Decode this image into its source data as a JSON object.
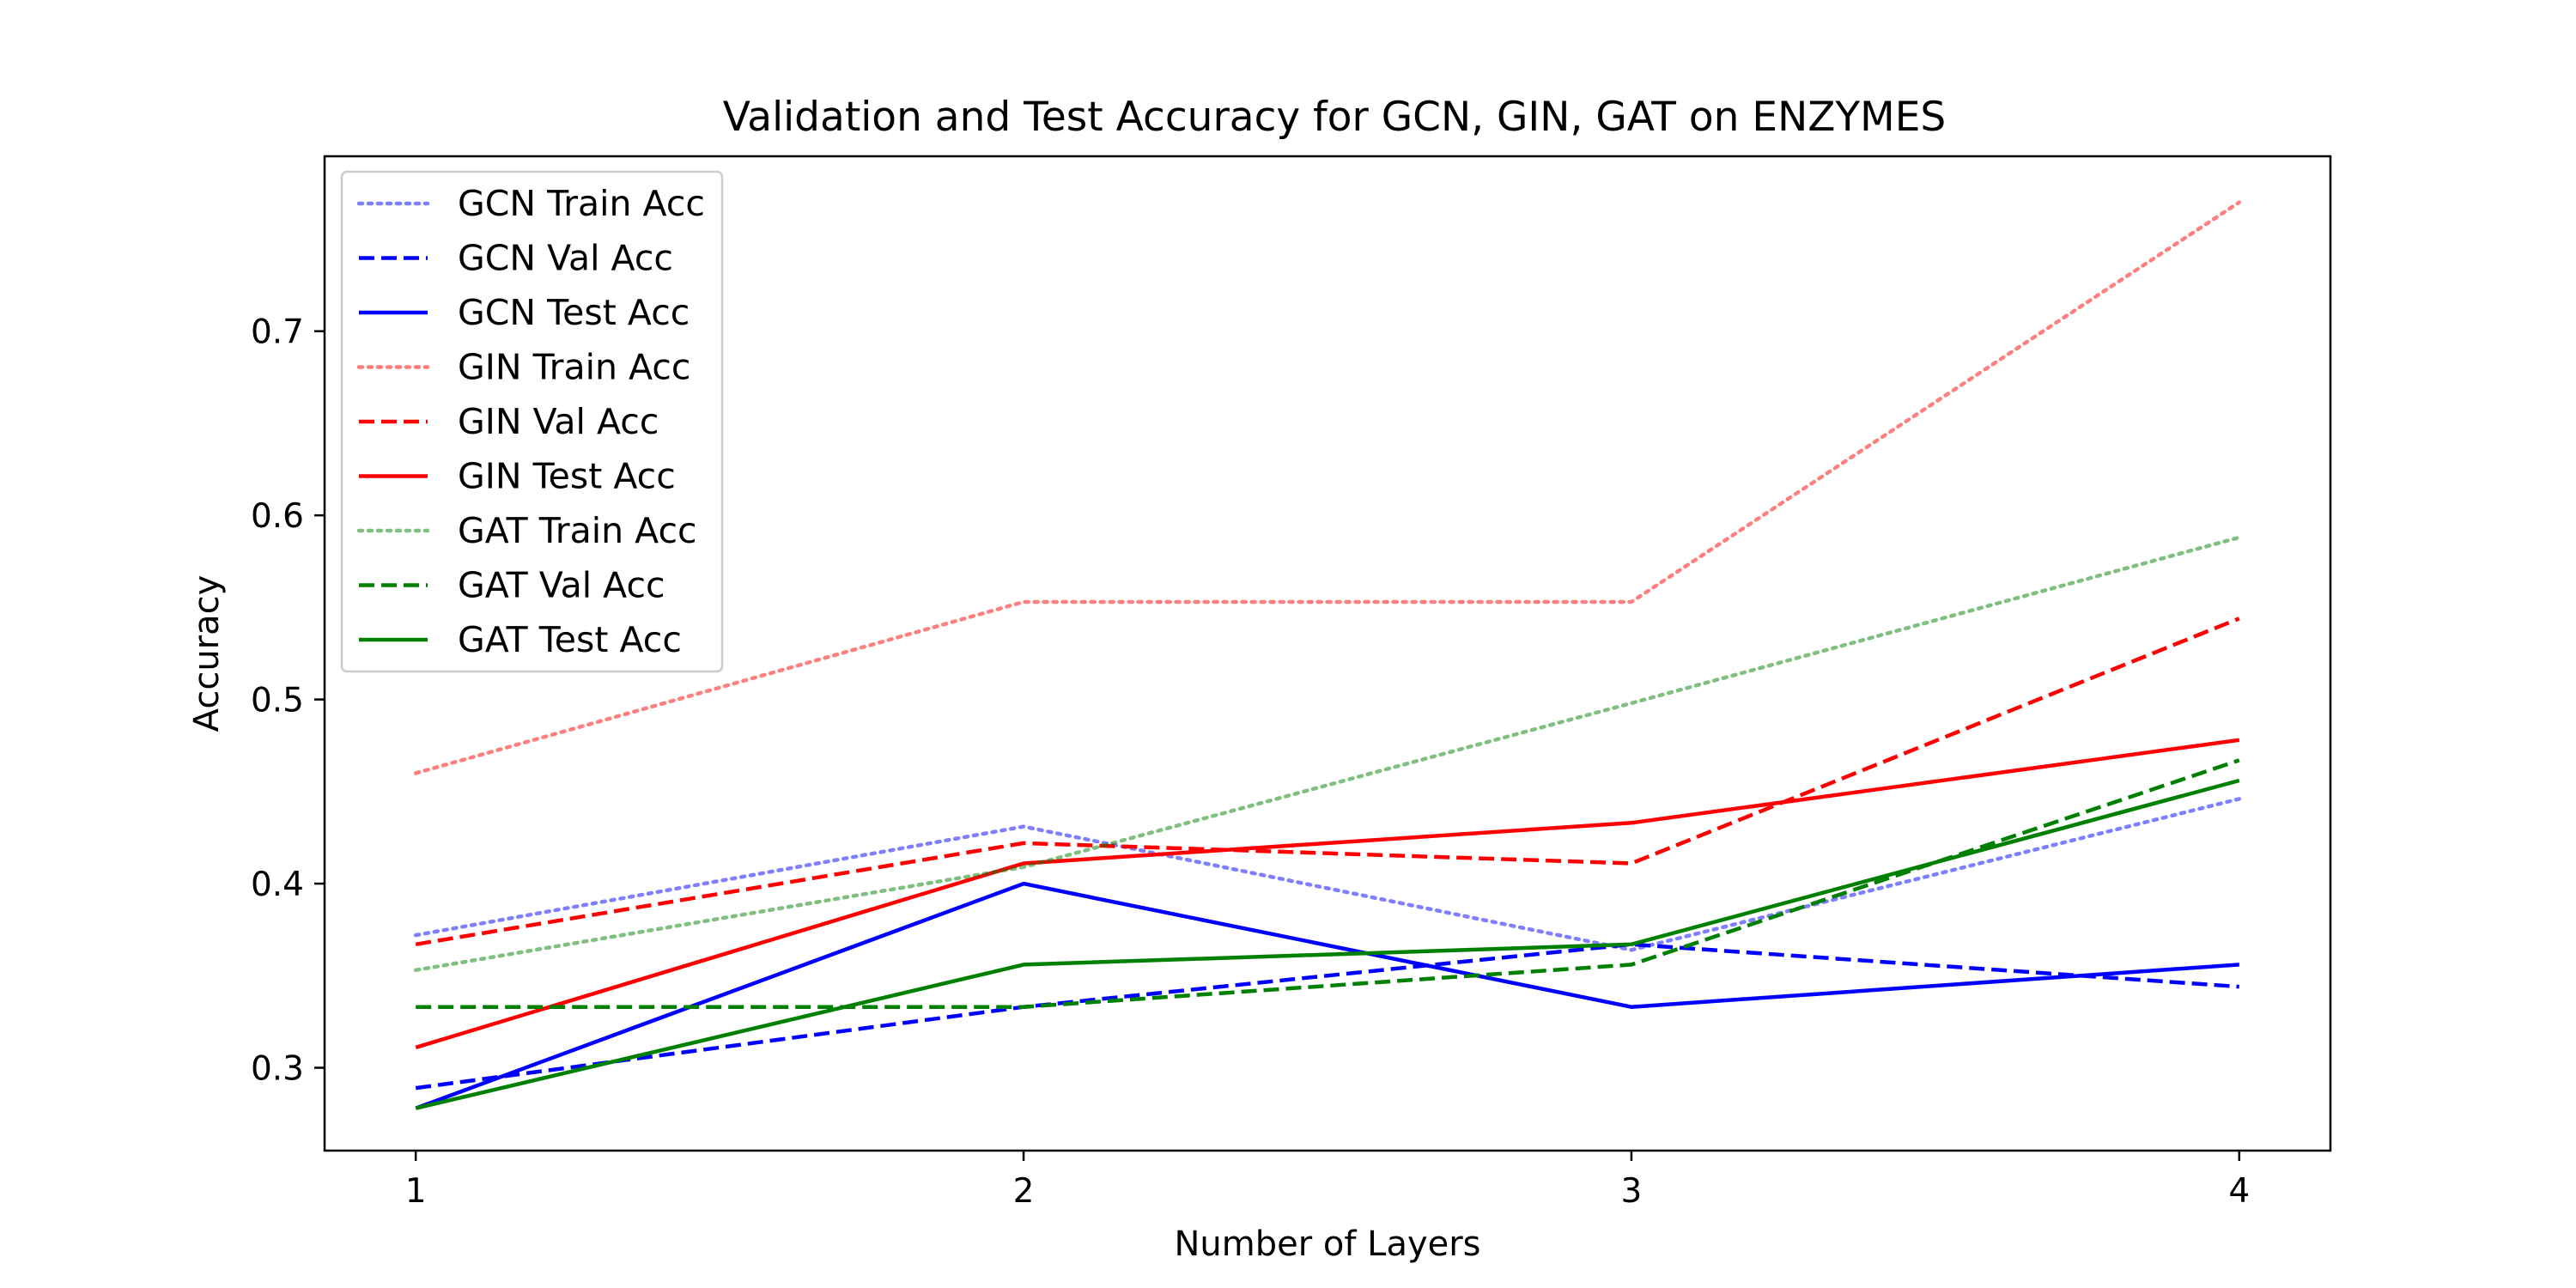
{
  "chart_data": {
    "type": "line",
    "title": "Validation and Test Accuracy for GCN, GIN, GAT on ENZYMES",
    "xlabel": "Number of Layers",
    "ylabel": "Accuracy",
    "x": [
      1,
      2,
      3,
      4
    ],
    "xlim": [
      0.85,
      4.15
    ],
    "ylim": [
      0.255,
      0.795
    ],
    "xticks": [
      1,
      2,
      3,
      4
    ],
    "xtick_labels": [
      "1",
      "2",
      "3",
      "4"
    ],
    "yticks": [
      0.3,
      0.4,
      0.5,
      0.6,
      0.7
    ],
    "ytick_labels": [
      "0.3",
      "0.4",
      "0.5",
      "0.6",
      "0.7"
    ],
    "grid": false,
    "legend_position": "upper-left",
    "series": [
      {
        "name": "GCN Train Acc",
        "values": [
          0.372,
          0.431,
          0.364,
          0.446
        ],
        "color": "#0000ff",
        "style": "dotted",
        "opacity": 0.5
      },
      {
        "name": "GCN Val Acc",
        "values": [
          0.289,
          0.333,
          0.367,
          0.344
        ],
        "color": "#0000ff",
        "style": "dashed",
        "opacity": 1
      },
      {
        "name": "GCN Test Acc",
        "values": [
          0.278,
          0.4,
          0.333,
          0.356
        ],
        "color": "#0000ff",
        "style": "solid",
        "opacity": 1
      },
      {
        "name": "GIN Train Acc",
        "values": [
          0.46,
          0.553,
          0.553,
          0.77
        ],
        "color": "#ff0000",
        "style": "dotted",
        "opacity": 0.5
      },
      {
        "name": "GIN Val Acc",
        "values": [
          0.367,
          0.422,
          0.411,
          0.544
        ],
        "color": "#ff0000",
        "style": "dashed",
        "opacity": 1
      },
      {
        "name": "GIN Test Acc",
        "values": [
          0.311,
          0.411,
          0.433,
          0.478
        ],
        "color": "#ff0000",
        "style": "solid",
        "opacity": 1
      },
      {
        "name": "GAT Train Acc",
        "values": [
          0.353,
          0.409,
          0.498,
          0.588
        ],
        "color": "#008000",
        "style": "dotted",
        "opacity": 0.5
      },
      {
        "name": "GAT Val Acc",
        "values": [
          0.333,
          0.333,
          0.356,
          0.467
        ],
        "color": "#008000",
        "style": "dashed",
        "opacity": 1
      },
      {
        "name": "GAT Test Acc",
        "values": [
          0.278,
          0.356,
          0.367,
          0.456
        ],
        "color": "#008000",
        "style": "solid",
        "opacity": 1
      }
    ]
  }
}
